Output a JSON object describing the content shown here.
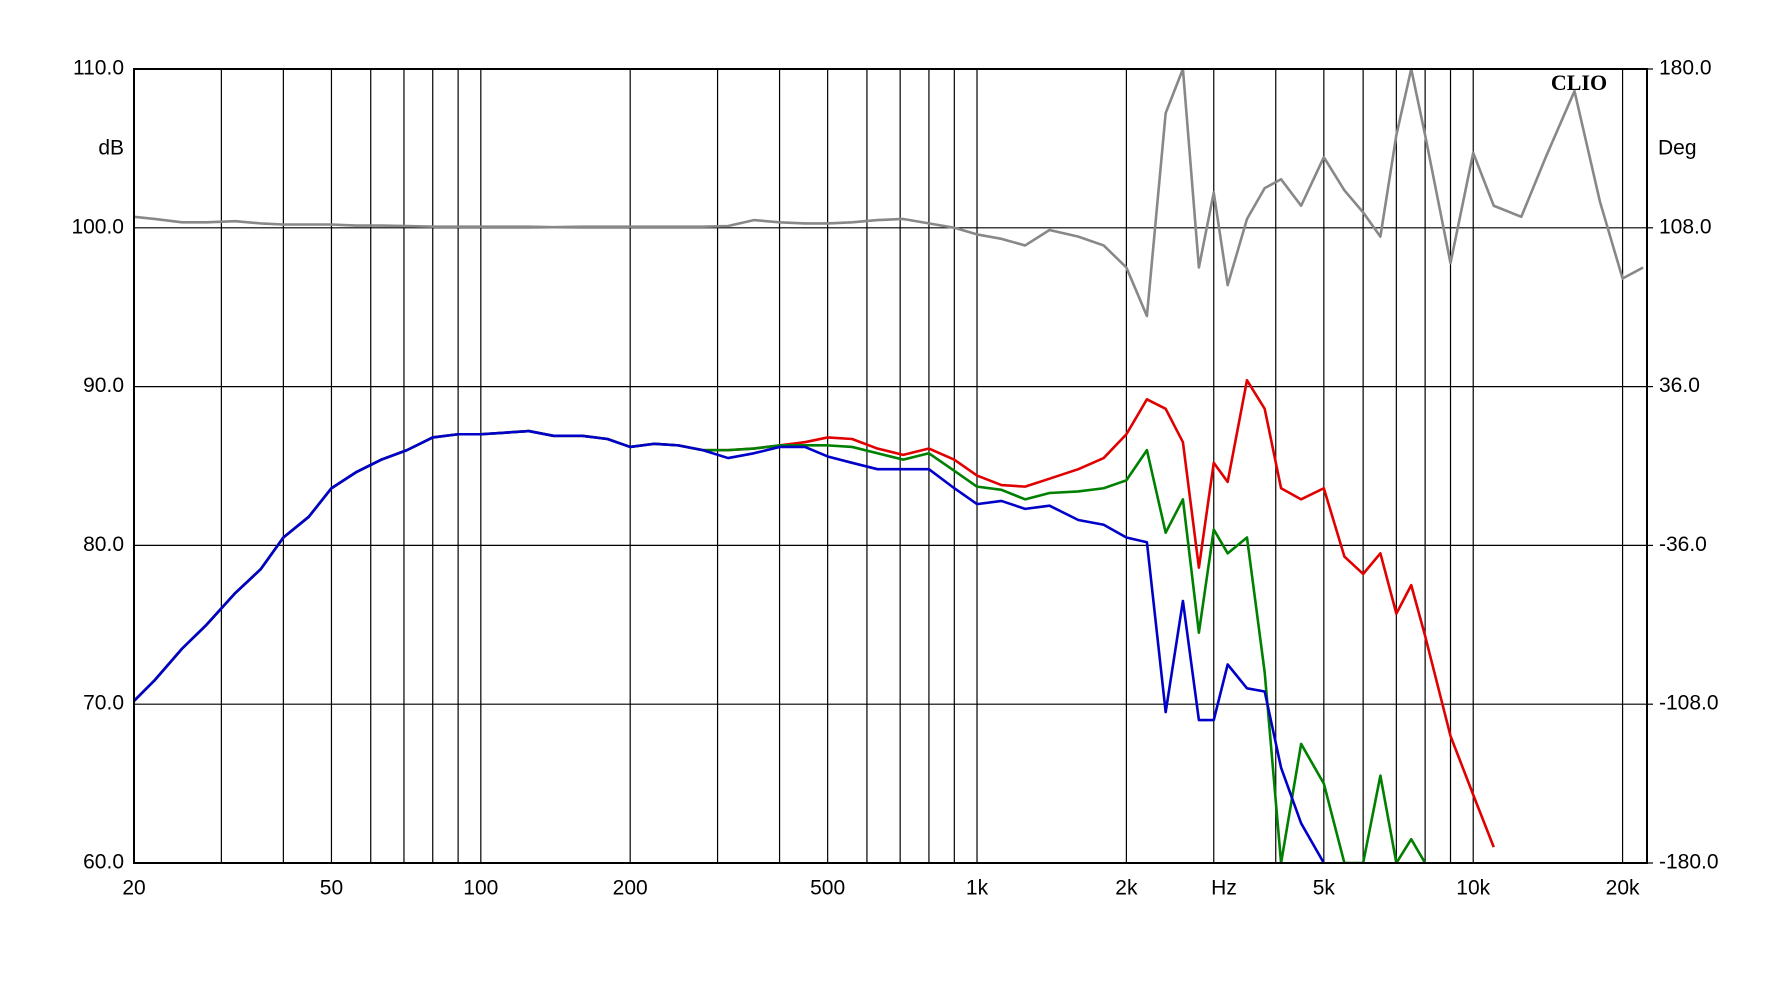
{
  "chart_data": {
    "type": "line",
    "y_label": "dB",
    "y2_label": "Deg",
    "x_label": "Hz",
    "annotation": "CLIO",
    "log_x": true,
    "grid": true,
    "xlim": [
      20,
      22400
    ],
    "ylim": [
      60,
      110
    ],
    "y2lim": [
      -180,
      180
    ],
    "xticks": [
      20,
      50,
      100,
      200,
      500,
      {
        "value": 1000,
        "label": "1k"
      },
      {
        "value": 2000,
        "label": "2k"
      },
      {
        "value": 5000,
        "label": "5k"
      },
      {
        "value": 10000,
        "label": "10k"
      },
      {
        "value": 20000,
        "label": "20k"
      }
    ],
    "xminor": [
      30,
      40,
      60,
      70,
      80,
      90,
      300,
      400,
      600,
      700,
      800,
      900,
      3000,
      4000,
      6000,
      7000,
      8000,
      9000
    ],
    "yticks": [
      {
        "value": 60,
        "label": "60.0"
      },
      {
        "value": 70,
        "label": "70.0"
      },
      {
        "value": 80,
        "label": "80.0"
      },
      {
        "value": 90,
        "label": "90.0"
      },
      {
        "value": 100,
        "label": "100.0"
      },
      {
        "value": 110,
        "label": "110.0"
      }
    ],
    "y2ticks": [
      {
        "value": -180,
        "label": "-180.0"
      },
      {
        "value": -108,
        "label": "-108.0"
      },
      {
        "value": -36,
        "label": "-36.0"
      },
      {
        "value": 36,
        "label": "36.0"
      },
      {
        "value": 108,
        "label": "108.0"
      },
      {
        "value": 180,
        "label": "180.0"
      }
    ],
    "x": [
      20,
      22,
      25,
      28,
      32,
      36,
      40,
      45,
      50,
      56,
      63,
      71,
      80,
      90,
      100,
      112,
      125,
      140,
      160,
      180,
      200,
      224,
      250,
      280,
      315,
      355,
      400,
      450,
      500,
      560,
      630,
      710,
      800,
      900,
      1000,
      1120,
      1250,
      1400,
      1600,
      1800,
      2000,
      2200,
      2400,
      2600,
      2800,
      3000,
      3200,
      3500,
      3800,
      4100,
      4500,
      5000,
      5500,
      6000,
      6500,
      7000,
      7500,
      8000,
      9000,
      10000,
      11000,
      12500,
      14000,
      16000,
      18000,
      20000,
      22000
    ],
    "series": [
      {
        "color": "#888888",
        "axis": "y2",
        "values": [
          113,
          112,
          110.5,
          110.5,
          111,
          110,
          109.5,
          109.5,
          109.5,
          109,
          109,
          108.8,
          108.5,
          108.5,
          108.5,
          108.5,
          108.5,
          108.3,
          108.5,
          108.5,
          108.5,
          108.5,
          108.5,
          108.5,
          108.8,
          111.5,
          110.5,
          110,
          110,
          110.5,
          111.5,
          112,
          110,
          108,
          105,
          103,
          100,
          107,
          104,
          100,
          90,
          68,
          160,
          180,
          90,
          124,
          82,
          112,
          126,
          130,
          118,
          140,
          125,
          115,
          104,
          150,
          180,
          150,
          92,
          142,
          118,
          113,
          140,
          170,
          120,
          85,
          90
        ]
      },
      {
        "color": "#e00000",
        "values": [
          70.2,
          71.5,
          73.5,
          75,
          77,
          78.5,
          80.5,
          81.8,
          83.6,
          84.6,
          85.4,
          86,
          86.8,
          87,
          87,
          87.1,
          87.2,
          86.9,
          86.9,
          86.7,
          86.2,
          86.4,
          86.3,
          86.0,
          86,
          86.1,
          86.3,
          86.5,
          86.8,
          86.7,
          86.1,
          85.7,
          86.1,
          85.4,
          84.4,
          83.8,
          83.7,
          84.2,
          84.8,
          85.5,
          87,
          89.2,
          88.6,
          86.5,
          78.6,
          85.2,
          84,
          90.4,
          88.6,
          83.6,
          82.9,
          83.6,
          79.3,
          78.2,
          79.5,
          75.7,
          77.5,
          74.3,
          68,
          64.3,
          61,
          null,
          null,
          null,
          null,
          null,
          null
        ]
      },
      {
        "color": "#008000",
        "values": [
          70.2,
          71.5,
          73.5,
          75,
          77,
          78.5,
          80.5,
          81.8,
          83.6,
          84.6,
          85.4,
          86,
          86.8,
          87,
          87,
          87.1,
          87.2,
          86.9,
          86.9,
          86.7,
          86.2,
          86.4,
          86.3,
          86.0,
          86,
          86.1,
          86.3,
          86.3,
          86.3,
          86.2,
          85.8,
          85.4,
          85.8,
          84.7,
          83.7,
          83.5,
          82.9,
          83.3,
          83.4,
          83.6,
          84.1,
          86,
          80.8,
          82.9,
          74.5,
          81,
          79.5,
          80.5,
          72,
          60,
          67.5,
          65,
          60,
          60,
          65.5,
          60,
          61.5,
          60,
          null,
          null,
          null,
          null,
          null,
          null,
          null,
          null,
          null
        ]
      },
      {
        "color": "#0000c8",
        "values": [
          70.2,
          71.5,
          73.5,
          75,
          77,
          78.5,
          80.5,
          81.8,
          83.6,
          84.6,
          85.4,
          86,
          86.8,
          87,
          87,
          87.1,
          87.2,
          86.9,
          86.9,
          86.7,
          86.2,
          86.4,
          86.3,
          86.0,
          85.5,
          85.8,
          86.2,
          86.2,
          85.6,
          85.2,
          84.8,
          84.8,
          84.8,
          83.6,
          82.6,
          82.8,
          82.3,
          82.5,
          81.6,
          81.3,
          80.5,
          80.2,
          69.5,
          76.5,
          69,
          69,
          72.5,
          71,
          70.8,
          66,
          62.5,
          60,
          null,
          null,
          null,
          null,
          null,
          null,
          null,
          null,
          null,
          null,
          null,
          null,
          null,
          null,
          null
        ]
      }
    ]
  }
}
